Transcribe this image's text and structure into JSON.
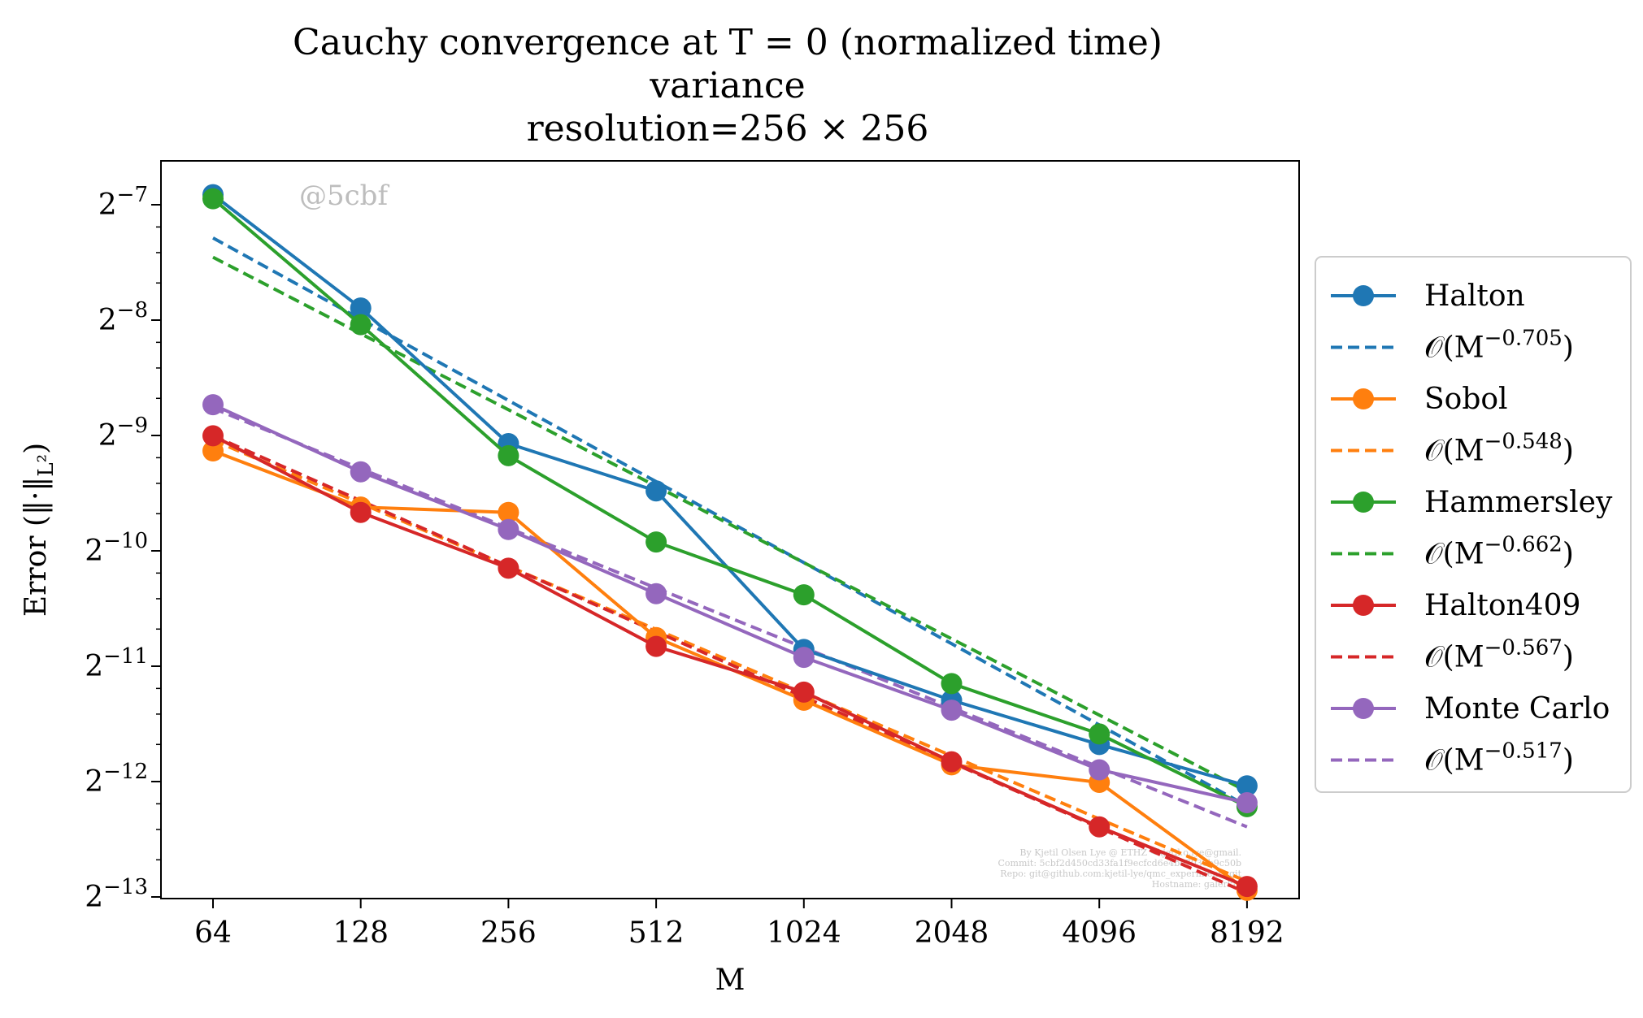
{
  "chart_data": {
    "type": "line",
    "title_lines": [
      "Cauchy convergence at T = 0 (normalized time)",
      "variance",
      "resolution=256 × 256"
    ],
    "xlabel": "M",
    "ylabel": "Error (‖·‖L²)",
    "x_scale": "log2",
    "y_scale": "log2",
    "x": [
      64,
      128,
      256,
      512,
      1024,
      2048,
      4096,
      8192
    ],
    "x_tick_labels": [
      "64",
      "128",
      "256",
      "512",
      "1024",
      "2048",
      "4096",
      "8192"
    ],
    "y_ticks": [
      {
        "base": "2",
        "exp": "−7",
        "value": 0.0078125
      },
      {
        "base": "2",
        "exp": "−8",
        "value": 0.00390625
      },
      {
        "base": "2",
        "exp": "−9",
        "value": 0.001953125
      },
      {
        "base": "2",
        "exp": "−10",
        "value": 0.0009765625
      },
      {
        "base": "2",
        "exp": "−11",
        "value": 0.00048828125
      },
      {
        "base": "2",
        "exp": "−12",
        "value": 0.000244140625
      },
      {
        "base": "2",
        "exp": "−13",
        "value": 0.0001220703125
      }
    ],
    "grid": false,
    "legend_position": "outside-right",
    "series": [
      {
        "name": "Halton",
        "color": "#1f77b4",
        "style": "solid-markers",
        "values": [
          0.0083,
          0.0042,
          0.00186,
          0.0014,
          0.00054,
          0.000398,
          0.000305,
          0.000238
        ]
      },
      {
        "name": "O(M^-0.705)",
        "label_main": "𝒪(M",
        "label_exp": "−0.705",
        "color": "#1f77b4",
        "style": "dashed",
        "values": [
          0.0064,
          0.00393,
          0.00241,
          0.00148,
          0.00091,
          0.000559,
          0.000343,
          0.000211
        ]
      },
      {
        "name": "Sobol",
        "color": "#ff7f0e",
        "style": "solid-markers",
        "values": [
          0.00178,
          0.00127,
          0.00123,
          0.00058,
          0.000398,
          0.00027,
          0.000243,
          0.000127
        ]
      },
      {
        "name": "O(M^-0.548)",
        "label_main": "𝒪(M",
        "label_exp": "−0.548",
        "color": "#ff7f0e",
        "style": "dashed",
        "values": [
          0.0019,
          0.0013,
          0.00089,
          0.000609,
          0.000417,
          0.000285,
          0.000195,
          0.000134
        ]
      },
      {
        "name": "Hammersley",
        "color": "#2ca02c",
        "style": "solid-markers",
        "values": [
          0.0081,
          0.0038,
          0.00173,
          0.00103,
          0.00075,
          0.00044,
          0.000325,
          0.00021
        ]
      },
      {
        "name": "O(M^-0.662)",
        "label_main": "𝒪(M",
        "label_exp": "−0.662",
        "color": "#2ca02c",
        "style": "dashed",
        "values": [
          0.0057,
          0.0036,
          0.00228,
          0.00144,
          0.00091,
          0.000576,
          0.000364,
          0.00023
        ]
      },
      {
        "name": "Halton409",
        "color": "#d62728",
        "style": "solid-markers",
        "values": [
          0.00195,
          0.00123,
          0.00088,
          0.00055,
          0.000418,
          0.000275,
          0.000186,
          0.00013
        ]
      },
      {
        "name": "O(M^-0.567)",
        "label_main": "𝒪(M",
        "label_exp": "−0.567",
        "color": "#d62728",
        "style": "dashed",
        "values": [
          0.00195,
          0.00132,
          0.00089,
          0.000601,
          0.000406,
          0.000274,
          0.000185,
          0.000125
        ]
      },
      {
        "name": "Monte Carlo",
        "color": "#9467bd",
        "style": "solid-markers",
        "values": [
          0.00235,
          0.00157,
          0.00111,
          0.000755,
          0.000515,
          0.000375,
          0.000262,
          0.000215
        ]
      },
      {
        "name": "O(M^-0.517)",
        "label_main": "𝒪(M",
        "label_exp": "−0.517",
        "color": "#9467bd",
        "style": "dashed",
        "values": [
          0.0023,
          0.0016,
          0.00112,
          0.000781,
          0.000546,
          0.000381,
          0.000266,
          0.000186
        ]
      }
    ]
  },
  "watermark": "@5cbf",
  "credits": [
    "By Kjetil Olsen Lye @ ETHZ <kjetil.o.lye@gmail.",
    "Commit: 5cbf2d450cd33fa1f9ecfcd6e4be7030b9c50b",
    "Repo: git@github.com:kjetil-lye/qmc_experiments.git",
    "Hostname: galerkin"
  ]
}
